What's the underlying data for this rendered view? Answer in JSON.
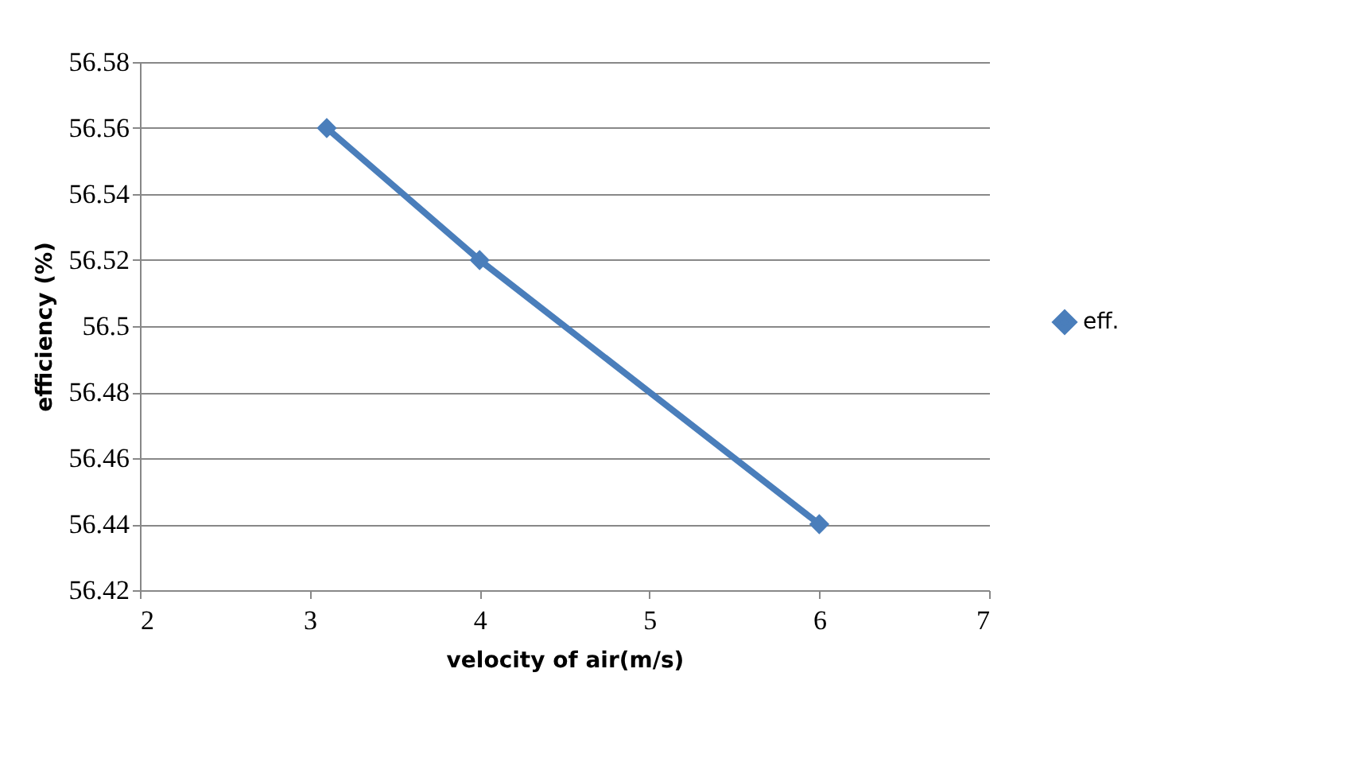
{
  "chart_data": {
    "type": "line",
    "xlabel": "velocity of air(m/s)",
    "ylabel": "efficiency (%)",
    "x": [
      3.1,
      4,
      6
    ],
    "series": [
      {
        "name": "eff.",
        "color": "#4a7ebb",
        "values": [
          56.56,
          56.52,
          56.44
        ]
      }
    ],
    "xlim": [
      2,
      7
    ],
    "xticks": [
      2,
      3,
      4,
      5,
      6,
      7
    ],
    "ylim": [
      56.42,
      56.58
    ],
    "yticks": [
      56.42,
      56.44,
      56.46,
      56.48,
      56.5,
      56.52,
      56.54,
      56.56,
      56.58
    ],
    "grid": "y",
    "legend": "right",
    "marker": "diamond",
    "line_style": "solid"
  }
}
